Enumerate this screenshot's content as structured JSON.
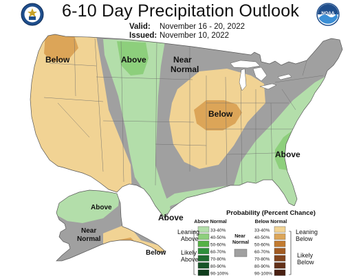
{
  "header": {
    "title": "6-10 Day Precipitation Outlook",
    "valid_label": "Valid:",
    "valid_value": "November 16 - 20, 2022",
    "issued_label": "Issued:",
    "issued_value": "November 10, 2022"
  },
  "logos": {
    "left": "doc-seal-icon",
    "right": "noaa-logo-icon",
    "right_text": "NOAA"
  },
  "map_labels": {
    "below_northwest": "Below",
    "above_rockies": "Above",
    "near_normal_plains": "Near\nNormal",
    "below_midwest": "Below",
    "above_southeast": "Above",
    "above_texas": "Above",
    "alaska_above": "Above",
    "alaska_near_normal": "Near\nNormal",
    "alaska_below": "Below"
  },
  "legend": {
    "title": "Probability (Percent Chance)",
    "above_header": "Above Normal",
    "below_header": "Below Normal",
    "near_header": "Near\nNormal",
    "leaning_above": "Leaning\nAbove",
    "likely_above": "Likely\nAbove",
    "leaning_below": "Leaning\nBelow",
    "likely_below": "Likely\nBelow",
    "above_bins": [
      {
        "label": "33-40%",
        "color": "#b3deaa"
      },
      {
        "label": "40-50%",
        "color": "#8dcf7c"
      },
      {
        "label": "50-60%",
        "color": "#55b145"
      },
      {
        "label": "60-70%",
        "color": "#2e8f3a"
      },
      {
        "label": "70-80%",
        "color": "#1f6b2e"
      },
      {
        "label": "80-90%",
        "color": "#175427"
      },
      {
        "label": "90-100%",
        "color": "#0f3d1c"
      }
    ],
    "below_bins": [
      {
        "label": "33-40%",
        "color": "#f1d394"
      },
      {
        "label": "40-50%",
        "color": "#dca558"
      },
      {
        "label": "50-60%",
        "color": "#c27b30"
      },
      {
        "label": "60-70%",
        "color": "#a25b22"
      },
      {
        "label": "70-80%",
        "color": "#82441d"
      },
      {
        "label": "80-90%",
        "color": "#633119"
      },
      {
        "label": "90-100%",
        "color": "#4a2113"
      }
    ],
    "near_color": "#a0a0a0"
  },
  "colors": {
    "near_normal": "#a0a0a0",
    "above_lean": "#b3deaa",
    "above_40": "#8dcf7c",
    "below_lean": "#f1d394",
    "below_40": "#dca558",
    "water": "#ffffff"
  }
}
